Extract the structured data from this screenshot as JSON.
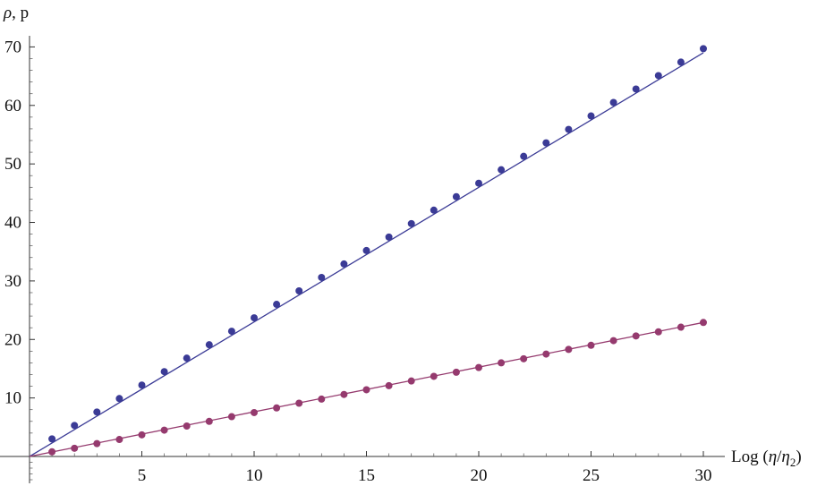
{
  "chart_data": {
    "type": "scatter",
    "xlabel": {
      "prefix": "Log (",
      "num": "η",
      "slash": "/",
      "den": "η",
      "sub": "2",
      "suffix": ")"
    },
    "ylabel": {
      "rho": "ρ",
      "sep": ", ",
      "p": "p"
    },
    "xlim": [
      0,
      30
    ],
    "ylim": [
      0,
      72
    ],
    "x_ticks": [
      "5",
      "10",
      "15",
      "20",
      "25",
      "30"
    ],
    "y_ticks": [
      "10",
      "20",
      "30",
      "40",
      "50",
      "60",
      "70"
    ],
    "grid": false,
    "series": [
      {
        "color": "#3b3b96",
        "points": {
          "x": [
            1,
            2,
            3,
            4,
            5,
            6,
            7,
            8,
            9,
            10,
            11,
            12,
            13,
            14,
            15,
            16,
            17,
            18,
            19,
            20,
            21,
            22,
            23,
            24,
            25,
            26,
            27,
            28,
            29,
            30
          ],
          "y": [
            3.0,
            5.3,
            7.6,
            9.9,
            12.2,
            14.5,
            16.8,
            19.1,
            21.4,
            23.7,
            26.0,
            28.3,
            30.6,
            32.9,
            35.2,
            37.5,
            39.8,
            42.1,
            44.4,
            46.7,
            49.0,
            51.3,
            53.6,
            55.9,
            58.2,
            60.5,
            62.8,
            65.1,
            67.4,
            69.7
          ]
        },
        "fit_line": {
          "x": [
            0,
            30
          ],
          "y": [
            0,
            69.0
          ]
        }
      },
      {
        "color": "#953a6e",
        "points": {
          "x": [
            1,
            2,
            3,
            4,
            5,
            6,
            7,
            8,
            9,
            10,
            11,
            12,
            13,
            14,
            15,
            16,
            17,
            18,
            19,
            20,
            21,
            22,
            23,
            24,
            25,
            26,
            27,
            28,
            29,
            30
          ],
          "y": [
            0.8,
            1.4,
            2.2,
            2.9,
            3.7,
            4.5,
            5.2,
            6.0,
            6.8,
            7.5,
            8.3,
            9.1,
            9.8,
            10.6,
            11.4,
            12.1,
            12.9,
            13.7,
            14.4,
            15.2,
            16.0,
            16.7,
            17.5,
            18.3,
            19.0,
            19.8,
            20.6,
            21.3,
            22.1,
            22.9
          ]
        },
        "fit_line": {
          "x": [
            0,
            30
          ],
          "y": [
            0,
            22.9
          ]
        }
      }
    ]
  }
}
